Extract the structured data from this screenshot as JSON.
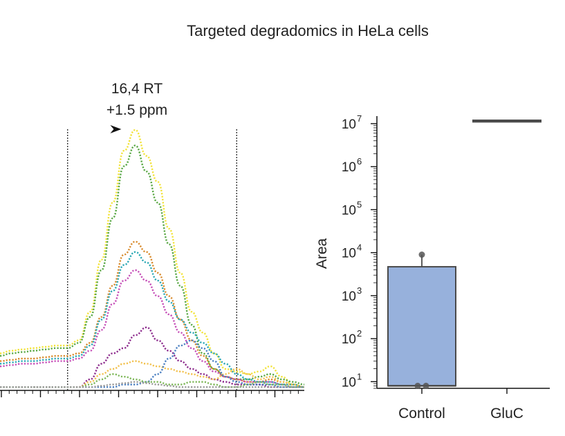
{
  "figure": {
    "title": "Targeted degradomics in HeLa cells"
  },
  "chart_data": [
    {
      "type": "line",
      "title": "",
      "xlabel": "",
      "ylabel": "",
      "annotation": {
        "lines": [
          "16,4 RT",
          "+1.5 ppm"
        ]
      },
      "x": [
        0,
        1,
        2,
        3,
        4,
        5,
        6,
        7,
        8,
        9,
        10,
        11,
        12,
        13,
        14,
        15,
        16,
        17,
        18,
        19,
        20,
        21,
        22,
        23,
        24,
        25,
        26,
        27
      ],
      "window": [
        6,
        21
      ],
      "apex_x": 11.5,
      "series": [
        {
          "color": "#f2e33a",
          "values": [
            0.14,
            0.15,
            0.155,
            0.16,
            0.165,
            0.17,
            0.17,
            0.19,
            0.3,
            0.5,
            0.72,
            0.92,
            1.0,
            0.9,
            0.8,
            0.62,
            0.45,
            0.3,
            0.22,
            0.14,
            0.08,
            0.07,
            0.06,
            0.07,
            0.09,
            0.05,
            0.02,
            0.01
          ]
        },
        {
          "color": "#5aa845",
          "values": [
            0.13,
            0.14,
            0.145,
            0.15,
            0.155,
            0.16,
            0.16,
            0.18,
            0.28,
            0.46,
            0.66,
            0.86,
            0.94,
            0.84,
            0.72,
            0.56,
            0.4,
            0.25,
            0.14,
            0.08,
            0.05,
            0.04,
            0.04,
            0.05,
            0.06,
            0.04,
            0.03,
            0.02
          ]
        },
        {
          "color": "#d88b2e",
          "values": [
            0.11,
            0.115,
            0.12,
            0.12,
            0.125,
            0.13,
            0.13,
            0.14,
            0.18,
            0.28,
            0.4,
            0.52,
            0.57,
            0.53,
            0.45,
            0.36,
            0.27,
            0.19,
            0.13,
            0.08,
            0.05,
            0.04,
            0.03,
            0.03,
            0.04,
            0.03,
            0.02,
            0.01
          ]
        },
        {
          "color": "#2aa7b4",
          "values": [
            0.1,
            0.105,
            0.11,
            0.11,
            0.115,
            0.12,
            0.12,
            0.13,
            0.17,
            0.27,
            0.38,
            0.48,
            0.53,
            0.49,
            0.42,
            0.34,
            0.27,
            0.22,
            0.18,
            0.14,
            0.1,
            0.06,
            0.04,
            0.03,
            0.03,
            0.02,
            0.02,
            0.01
          ]
        },
        {
          "color": "#c64fb8",
          "values": [
            0.09,
            0.095,
            0.1,
            0.1,
            0.105,
            0.11,
            0.11,
            0.12,
            0.15,
            0.23,
            0.33,
            0.42,
            0.46,
            0.42,
            0.36,
            0.29,
            0.22,
            0.16,
            0.11,
            0.07,
            0.05,
            0.04,
            0.03,
            0.03,
            0.03,
            0.02,
            0.01,
            0.01
          ]
        },
        {
          "color": "#8c2a8c",
          "values": [
            0.01,
            0.01,
            0.01,
            0.01,
            0.01,
            0.01,
            0.01,
            0.01,
            0.04,
            0.1,
            0.14,
            0.16,
            0.21,
            0.24,
            0.19,
            0.15,
            0.11,
            0.08,
            0.06,
            0.04,
            0.03,
            0.02,
            0.02,
            0.02,
            0.01,
            0.01,
            0.01,
            0.01
          ]
        },
        {
          "color": "#f2c14e",
          "values": [
            0.01,
            0.01,
            0.01,
            0.01,
            0.01,
            0.01,
            0.01,
            0.01,
            0.03,
            0.06,
            0.08,
            0.1,
            0.11,
            0.1,
            0.09,
            0.08,
            0.07,
            0.06,
            0.05,
            0.04,
            0.06,
            0.08,
            0.06,
            0.04,
            0.05,
            0.03,
            0.02,
            0.01
          ]
        },
        {
          "color": "#4a7fc1",
          "values": [
            0.01,
            0.01,
            0.01,
            0.01,
            0.01,
            0.01,
            0.01,
            0.01,
            0.01,
            0.01,
            0.01,
            0.02,
            0.02,
            0.03,
            0.06,
            0.12,
            0.17,
            0.19,
            0.16,
            0.11,
            0.05,
            0.03,
            0.02,
            0.02,
            0.02,
            0.01,
            0.01,
            0.01
          ]
        },
        {
          "color": "#7fb85a",
          "values": [
            0.01,
            0.01,
            0.01,
            0.01,
            0.01,
            0.01,
            0.01,
            0.01,
            0.02,
            0.04,
            0.06,
            0.05,
            0.04,
            0.03,
            0.03,
            0.02,
            0.02,
            0.03,
            0.03,
            0.02,
            0.01,
            0.01,
            0.02,
            0.03,
            0.02,
            0.02,
            0.01,
            0.01
          ]
        },
        {
          "color": "#9a9a9a",
          "values": [
            0.01,
            0.01,
            0.01,
            0.01,
            0.01,
            0.01,
            0.01,
            0.01,
            0.01,
            0.015,
            0.02,
            0.025,
            0.03,
            0.025,
            0.02,
            0.015,
            0.01,
            0.01,
            0.01,
            0.01,
            0.01,
            0.01,
            0.01,
            0.01,
            0.01,
            0.01,
            0.01,
            0.01
          ]
        }
      ]
    },
    {
      "type": "box",
      "ylabel": "Area",
      "yscale": "log",
      "ylim": [
        7,
        15000000
      ],
      "yticks": [
        {
          "value": 10,
          "base": "10",
          "exp": "1"
        },
        {
          "value": 100,
          "base": "10",
          "exp": "2"
        },
        {
          "value": 1000,
          "base": "10",
          "exp": "3"
        },
        {
          "value": 10000,
          "base": "10",
          "exp": "4"
        },
        {
          "value": 100000,
          "base": "10",
          "exp": "5"
        },
        {
          "value": 1000000,
          "base": "10",
          "exp": "6"
        },
        {
          "value": 10000000,
          "base": "10",
          "exp": "7"
        }
      ],
      "categories": [
        "Control",
        "GluC"
      ],
      "boxes": [
        {
          "category": "Control",
          "q1": 8,
          "median": 8,
          "q3": 4700,
          "whisker_low": 8,
          "whisker_high": 9000,
          "points": [
            8,
            8,
            9000
          ],
          "color": "#97b1dc"
        },
        {
          "category": "GluC",
          "q1": 11000000,
          "median": 11500000,
          "q3": 12000000,
          "whisker_low": 11000000,
          "whisker_high": 12000000,
          "points": [],
          "color": "#97b1dc"
        }
      ]
    }
  ]
}
